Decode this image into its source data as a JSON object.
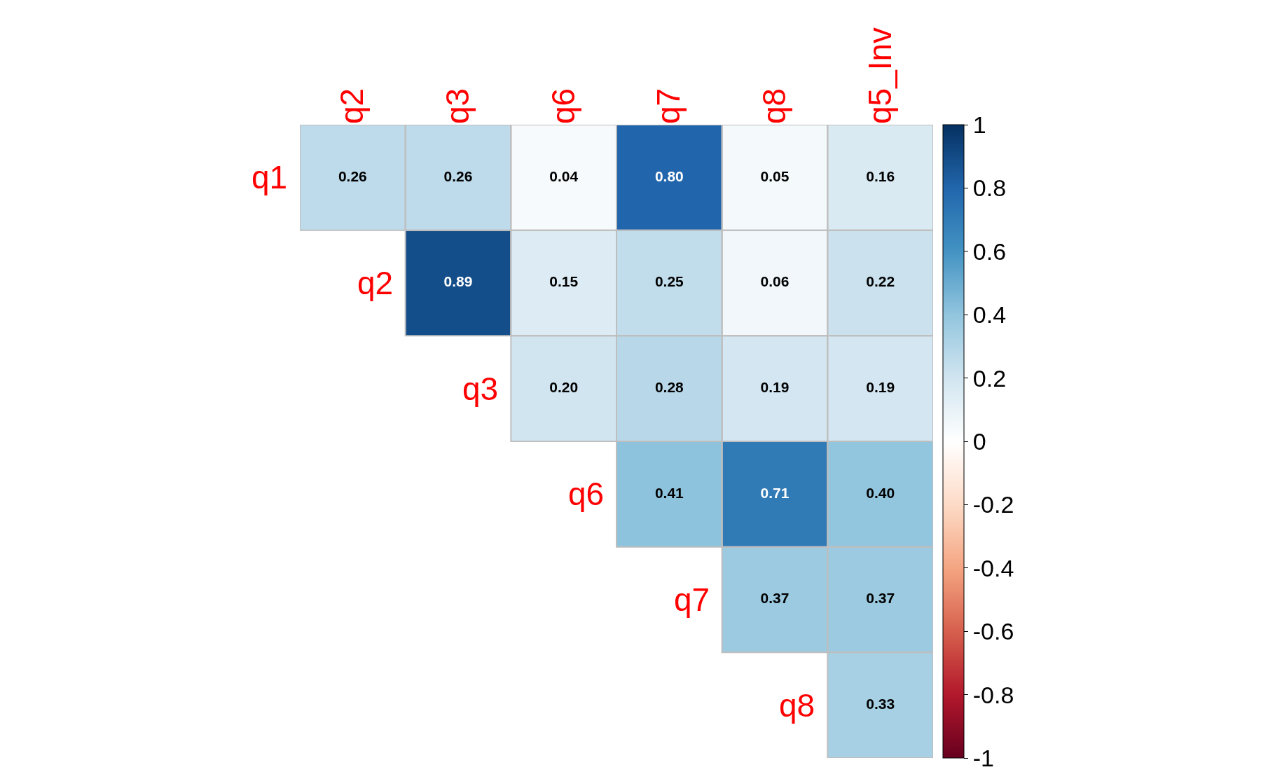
{
  "chart_data": {
    "type": "heatmap",
    "categories": [
      "q2",
      "q3",
      "q6",
      "q7",
      "q8",
      "q5_Inv"
    ],
    "y_categories": [
      "q1",
      "q2",
      "q3",
      "q6",
      "q7",
      "q8"
    ],
    "cells": [
      [
        0.26,
        0.26,
        0.04,
        0.8,
        0.05,
        0.16
      ],
      [
        null,
        0.89,
        0.15,
        0.25,
        0.06,
        0.22
      ],
      [
        null,
        null,
        0.2,
        0.28,
        0.19,
        0.19
      ],
      [
        null,
        null,
        null,
        0.41,
        0.71,
        0.4
      ],
      [
        null,
        null,
        null,
        null,
        0.37,
        0.37
      ],
      [
        null,
        null,
        null,
        null,
        null,
        0.33
      ]
    ],
    "cell_labels": [
      [
        "0.26",
        "0.26",
        "0.04",
        "0.80",
        "0.05",
        "0.16"
      ],
      [
        null,
        "0.89",
        "0.15",
        "0.25",
        "0.06",
        "0.22"
      ],
      [
        null,
        null,
        "0.20",
        "0.28",
        "0.19",
        "0.19"
      ],
      [
        null,
        null,
        null,
        "0.41",
        "0.71",
        "0.40"
      ],
      [
        null,
        null,
        null,
        null,
        "0.37",
        "0.37"
      ],
      [
        null,
        null,
        null,
        null,
        null,
        "0.33"
      ]
    ],
    "clim": [
      -1,
      1
    ],
    "cticks": [
      -1,
      -0.8,
      -0.6,
      -0.4,
      -0.2,
      0,
      0.2,
      0.4,
      0.6,
      0.8,
      1
    ]
  }
}
